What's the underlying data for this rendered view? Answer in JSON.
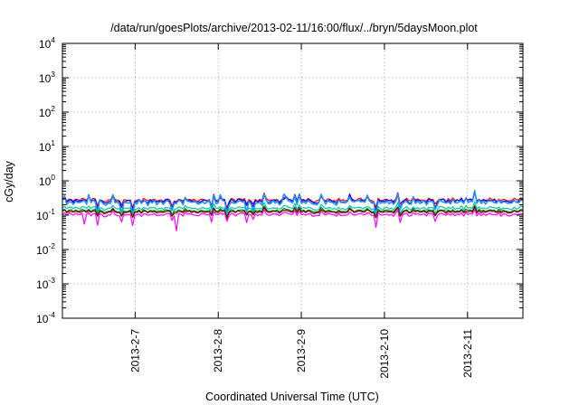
{
  "chart_data": {
    "type": "line",
    "title": "/data/run/goesPlots/archive/2013-02-11/16:00/flux/../bryn/5daysMoon.plot",
    "xlabel": "Coordinated Universal Time (UTC)",
    "ylabel": "cGy/day",
    "y_scale": "log",
    "ylim": [
      0.0001,
      10000
    ],
    "y_ticks": [
      {
        "base": "10",
        "exp": "-4",
        "value": 0.0001
      },
      {
        "base": "10",
        "exp": "-3",
        "value": 0.001
      },
      {
        "base": "10",
        "exp": "-2",
        "value": 0.01
      },
      {
        "base": "10",
        "exp": "-1",
        "value": 0.1
      },
      {
        "base": "10",
        "exp": "0",
        "value": 1
      },
      {
        "base": "10",
        "exp": "1",
        "value": 10
      },
      {
        "base": "10",
        "exp": "2",
        "value": 100
      },
      {
        "base": "10",
        "exp": "3",
        "value": 1000
      },
      {
        "base": "10",
        "exp": "4",
        "value": 10000
      }
    ],
    "xlim": [
      "2013-02-06 03:00",
      "2013-02-11 16:00"
    ],
    "x_ticks": [
      "2013-2-7",
      "2013-2-8",
      "2013-2-9",
      "2013-2-10",
      "2013-2-11"
    ],
    "grid": true,
    "series": [
      {
        "color": "#ff0000",
        "base": 0.28,
        "noise": 0.12,
        "dip": 0.1,
        "spike": 0.15
      },
      {
        "color": "#0000ff",
        "base": 0.26,
        "noise": 0.14,
        "dip": 0.25,
        "spike": 0.3
      },
      {
        "color": "#1e90ff",
        "base": 0.24,
        "noise": 0.22,
        "dip": 0.55,
        "spike": 0.45
      },
      {
        "color": "#00c8a0",
        "base": 0.16,
        "noise": 0.1,
        "dip": 0.2,
        "spike": 0.1
      },
      {
        "color": "#008000",
        "base": 0.135,
        "noise": 0.08,
        "dip": 0.15,
        "spike": 0.05
      },
      {
        "color": "#800000",
        "base": 0.125,
        "noise": 0.07,
        "dip": 0.12,
        "spike": 0.05
      },
      {
        "color": "#ff00ff",
        "base": 0.105,
        "noise": 0.1,
        "dip": 0.5,
        "spike": 0.05
      }
    ]
  }
}
